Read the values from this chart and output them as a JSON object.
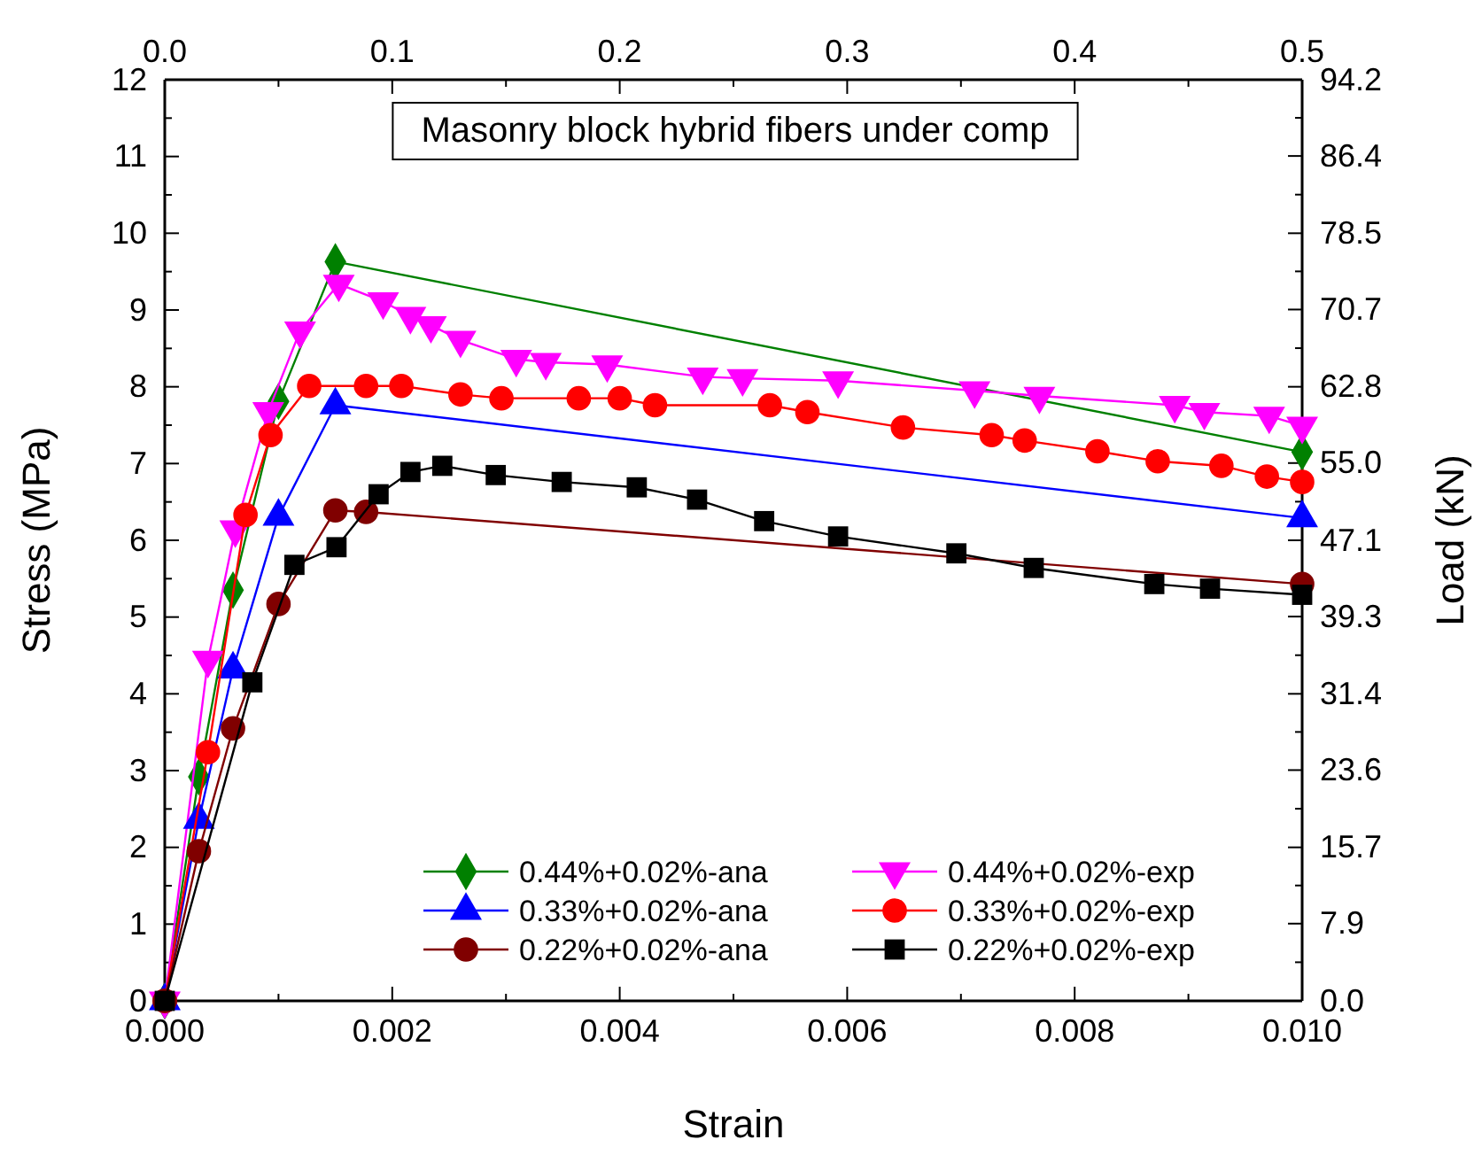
{
  "chart_data": {
    "type": "line",
    "title": "Masonry block hybrid fibers under comp",
    "xlabel": "Strain",
    "ylabel": "Stress (MPa)",
    "y2label": "Load (kN)",
    "xlim": [
      0,
      0.01
    ],
    "xticks": [
      {
        "value": 0,
        "label": "0.000"
      },
      {
        "value": 0.002,
        "label": "0.002"
      },
      {
        "value": 0.004,
        "label": "0.004"
      },
      {
        "value": 0.006,
        "label": "0.006"
      },
      {
        "value": 0.008,
        "label": "0.008"
      },
      {
        "value": 0.01,
        "label": "0.010"
      }
    ],
    "x2lim": [
      0,
      0.5
    ],
    "x2ticks": [
      {
        "value": 0,
        "label": "0.0"
      },
      0.1,
      0.2,
      0.3,
      0.4,
      0.5
    ],
    "ylim": [
      0,
      12
    ],
    "yticks": [
      0,
      1,
      2,
      3,
      4,
      5,
      6,
      7,
      8,
      9,
      10,
      11,
      12
    ],
    "y2lim": [
      0,
      94.2
    ],
    "y2ticks": [
      {
        "value": 0,
        "label": "0.0"
      },
      7.9,
      15.7,
      23.6,
      31.4,
      39.3,
      47.1,
      {
        "value": 55,
        "label": "55.0"
      },
      62.8,
      70.7,
      78.5,
      86.4,
      94.2
    ],
    "legend": "bottom right",
    "grid": false,
    "line_style": "solid",
    "series": [
      {
        "name": "0.44%+0.02%-ana",
        "color": "#008000",
        "marker": "diamond",
        "x": [
          0,
          0.0003,
          0.0006,
          0.001,
          0.0015,
          0.01
        ],
        "values": [
          0,
          2.92,
          5.35,
          7.81,
          9.63,
          7.15
        ]
      },
      {
        "name": "0.44%+0.02%-exp",
        "color": "#ff00ff",
        "marker": "triangle-down",
        "x": [
          0,
          0.00038,
          0.00062,
          0.00091,
          0.00119,
          0.00153,
          0.00192,
          0.00216,
          0.00234,
          0.0026,
          0.00309,
          0.00335,
          0.00389,
          0.00473,
          0.00508,
          0.00592,
          0.00712,
          0.00769,
          0.00888,
          0.00914,
          0.00971,
          0.01
        ],
        "values": [
          0,
          4.44,
          6.14,
          7.68,
          8.73,
          9.34,
          9.11,
          8.92,
          8.8,
          8.61,
          8.36,
          8.32,
          8.29,
          8.13,
          8.11,
          8.08,
          7.95,
          7.88,
          7.76,
          7.67,
          7.62,
          7.49
        ]
      },
      {
        "name": "0.33%+0.02%-ana",
        "color": "#0000ff",
        "marker": "triangle",
        "x": [
          0,
          0.0003,
          0.0006,
          0.001,
          0.0015,
          0.01
        ],
        "values": [
          0,
          2.36,
          4.32,
          6.31,
          7.76,
          6.29
        ]
      },
      {
        "name": "0.33%+0.02%-exp",
        "color": "#ff0000",
        "marker": "circle",
        "x": [
          0,
          0.00038,
          0.00071,
          0.00093,
          0.00127,
          0.00177,
          0.00208,
          0.0026,
          0.00296,
          0.00364,
          0.004,
          0.00431,
          0.00532,
          0.00565,
          0.00649,
          0.00727,
          0.00756,
          0.0082,
          0.00873,
          0.00929,
          0.00969,
          0.01
        ],
        "values": [
          0,
          3.24,
          6.33,
          7.37,
          8.01,
          8.01,
          8.01,
          7.9,
          7.85,
          7.85,
          7.85,
          7.76,
          7.76,
          7.67,
          7.47,
          7.37,
          7.3,
          7.16,
          7.03,
          6.97,
          6.83,
          6.76
        ]
      },
      {
        "name": "0.22%+0.02%-ana",
        "color": "#800000",
        "marker": "circle",
        "x": [
          0,
          0.0003,
          0.0006,
          0.001,
          0.0015,
          0.00177,
          0.01
        ],
        "values": [
          0,
          1.95,
          3.55,
          5.17,
          6.39,
          6.37,
          5.43
        ]
      },
      {
        "name": "0.22%+0.02%-exp",
        "color": "#000000",
        "marker": "square",
        "x": [
          0,
          0.00077,
          0.00114,
          0.00151,
          0.00188,
          0.00216,
          0.00244,
          0.00291,
          0.00349,
          0.00415,
          0.00468,
          0.00527,
          0.00592,
          0.00696,
          0.00764,
          0.0087,
          0.00919,
          0.01
        ],
        "values": [
          0,
          4.15,
          5.68,
          5.91,
          6.6,
          6.89,
          6.97,
          6.85,
          6.76,
          6.69,
          6.53,
          6.25,
          6.05,
          5.83,
          5.64,
          5.43,
          5.37,
          5.29
        ]
      }
    ]
  }
}
